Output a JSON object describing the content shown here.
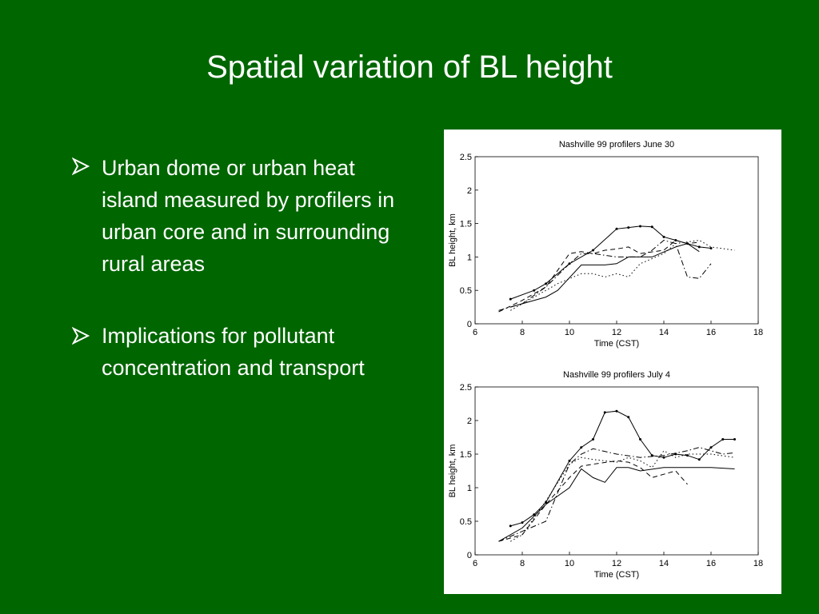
{
  "title": "Spatial variation of BL height",
  "bullets": [
    "Urban dome or urban heat island measured by profilers in urban core and in surrounding rural areas",
    "Implications for pollutant concentration and transport"
  ],
  "chart_data": [
    {
      "type": "line",
      "title": "Nashville 99 profilers June 30",
      "x_label": "Time (CST)",
      "y_label": "BL height, km",
      "xlim": [
        6,
        18
      ],
      "xticks": [
        6,
        8,
        10,
        12,
        14,
        16,
        18
      ],
      "ylim": [
        0,
        2.5
      ],
      "yticks": [
        0,
        0.5,
        1,
        1.5,
        2,
        2.5
      ],
      "series": [
        {
          "color": "#000000",
          "style": "solid",
          "markers": true,
          "x": [
            7.5,
            8.5,
            9,
            10,
            11,
            12,
            12.5,
            13,
            13.5,
            14,
            14.5,
            15,
            15.5,
            16
          ],
          "values": [
            0.37,
            0.5,
            0.6,
            0.9,
            1.1,
            1.42,
            1.44,
            1.46,
            1.45,
            1.3,
            1.25,
            1.2,
            1.15,
            1.13
          ]
        },
        {
          "color": "#000000",
          "style": "solid",
          "markers": false,
          "x": [
            7.5,
            8,
            9,
            9.5,
            10.5,
            11.5,
            12,
            12.5,
            13.5,
            14.5,
            15,
            15.5
          ],
          "values": [
            0.25,
            0.3,
            0.4,
            0.5,
            0.88,
            0.88,
            0.9,
            1.0,
            1.0,
            1.15,
            1.2,
            1.08
          ]
        },
        {
          "color": "#000000",
          "style": "dashed",
          "markers": false,
          "x": [
            7,
            8,
            9,
            10,
            10.5,
            11,
            11.5,
            12,
            12.5,
            13,
            14,
            14.5,
            15,
            15.5
          ],
          "values": [
            0.18,
            0.35,
            0.55,
            1.05,
            1.08,
            1.05,
            1.1,
            1.12,
            1.15,
            1.05,
            1.1,
            1.25,
            1.2,
            1.22
          ]
        },
        {
          "color": "#000000",
          "style": "dotted",
          "markers": false,
          "x": [
            7.5,
            8.5,
            9.5,
            10.5,
            11,
            11.5,
            12,
            12.5,
            13,
            14,
            14.5,
            15.5,
            16,
            17
          ],
          "values": [
            0.2,
            0.4,
            0.6,
            0.75,
            0.75,
            0.7,
            0.75,
            0.7,
            0.9,
            1.05,
            1.2,
            1.25,
            1.15,
            1.1
          ]
        },
        {
          "color": "#000000",
          "style": "dashdot",
          "markers": false,
          "x": [
            7,
            8,
            9,
            10,
            10.5,
            11,
            12,
            13,
            13.5,
            14,
            14.5,
            15,
            15.5,
            16
          ],
          "values": [
            0.2,
            0.3,
            0.55,
            0.9,
            1.05,
            1.05,
            1.0,
            1.0,
            1.1,
            1.25,
            1.2,
            0.7,
            0.68,
            0.9
          ]
        }
      ]
    },
    {
      "type": "line",
      "title": "Nashville 99 profilers July  4",
      "x_label": "Time (CST)",
      "y_label": "BL height, km",
      "xlim": [
        6,
        18
      ],
      "xticks": [
        6,
        8,
        10,
        12,
        14,
        16,
        18
      ],
      "ylim": [
        0,
        2.5
      ],
      "yticks": [
        0,
        0.5,
        1,
        1.5,
        2,
        2.5
      ],
      "series": [
        {
          "color": "#000000",
          "style": "solid",
          "markers": true,
          "x": [
            7.5,
            8,
            8.5,
            9,
            10,
            10.5,
            11,
            11.5,
            12,
            12.5,
            13,
            13.5,
            14,
            14.5,
            15,
            15.5,
            16,
            16.5,
            17
          ],
          "values": [
            0.43,
            0.48,
            0.6,
            0.78,
            1.4,
            1.6,
            1.72,
            2.12,
            2.14,
            2.05,
            1.72,
            1.48,
            1.45,
            1.5,
            1.48,
            1.42,
            1.6,
            1.72,
            1.72
          ]
        },
        {
          "color": "#000000",
          "style": "solid",
          "markers": false,
          "x": [
            7,
            8,
            9,
            10,
            10.5,
            11,
            11.5,
            12,
            12.5,
            13,
            14,
            15,
            16,
            17
          ],
          "values": [
            0.2,
            0.4,
            0.75,
            1.0,
            1.28,
            1.15,
            1.08,
            1.3,
            1.3,
            1.25,
            1.3,
            1.3,
            1.3,
            1.28
          ]
        },
        {
          "color": "#000000",
          "style": "dashed",
          "markers": false,
          "x": [
            7,
            8,
            9,
            10,
            10.5,
            11,
            12,
            12.5,
            13,
            13.5,
            14,
            14.5,
            15
          ],
          "values": [
            0.2,
            0.3,
            0.75,
            1.15,
            1.32,
            1.35,
            1.4,
            1.38,
            1.3,
            1.15,
            1.2,
            1.25,
            1.05
          ]
        },
        {
          "color": "#000000",
          "style": "dotted",
          "markers": false,
          "x": [
            7.5,
            8,
            9,
            10,
            10.5,
            11,
            12,
            12.5,
            13,
            13.5,
            14,
            14.5,
            15,
            16,
            17
          ],
          "values": [
            0.2,
            0.3,
            0.8,
            1.35,
            1.45,
            1.42,
            1.38,
            1.45,
            1.4,
            1.3,
            1.55,
            1.45,
            1.5,
            1.5,
            1.45
          ]
        },
        {
          "color": "#000000",
          "style": "dashdot",
          "markers": false,
          "x": [
            7,
            8,
            9,
            10,
            10.5,
            11,
            12,
            13,
            14,
            15,
            15.5,
            16,
            16.5,
            17
          ],
          "values": [
            0.2,
            0.35,
            0.5,
            1.35,
            1.5,
            1.58,
            1.5,
            1.45,
            1.48,
            1.55,
            1.6,
            1.55,
            1.5,
            1.52
          ]
        }
      ]
    }
  ]
}
